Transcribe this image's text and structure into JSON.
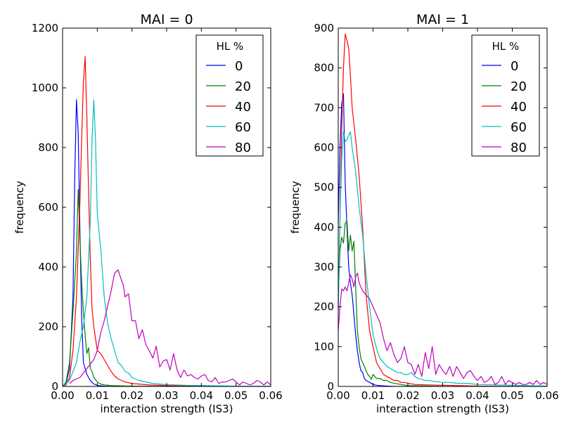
{
  "chart_data": [
    {
      "type": "line",
      "title": "MAI = 0",
      "xlabel": "interaction strength (IS3)",
      "ylabel": "frequency",
      "xlim": [
        0,
        0.06
      ],
      "ylim": [
        0,
        1200
      ],
      "xticks": [
        "0.00",
        "0.01",
        "0.02",
        "0.03",
        "0.04",
        "0.05",
        "0.06"
      ],
      "yticks": [
        "0",
        "200",
        "400",
        "600",
        "800",
        "1000",
        "1200"
      ],
      "grid": false,
      "legend": {
        "title": "HL %",
        "position": "top-right"
      },
      "series": [
        {
          "name": "0",
          "color": "#0000ff",
          "x": [
            0.0,
            0.001,
            0.002,
            0.003,
            0.0035,
            0.004,
            0.0045,
            0.005,
            0.0055,
            0.006,
            0.007,
            0.008,
            0.009,
            0.01,
            0.011,
            0.012,
            0.014,
            0.016,
            0.02,
            0.03,
            0.04,
            0.06
          ],
          "y": [
            0,
            10,
            60,
            300,
            700,
            960,
            850,
            520,
            230,
            80,
            40,
            20,
            8,
            4,
            2,
            1,
            0,
            0,
            0,
            0,
            0,
            0
          ]
        },
        {
          "name": "20",
          "color": "#008000",
          "x": [
            0.0,
            0.001,
            0.002,
            0.003,
            0.004,
            0.0045,
            0.005,
            0.0055,
            0.006,
            0.0065,
            0.007,
            0.0075,
            0.008,
            0.0085,
            0.009,
            0.01,
            0.011,
            0.012,
            0.014,
            0.016,
            0.02,
            0.03,
            0.06
          ],
          "y": [
            0,
            15,
            80,
            250,
            450,
            660,
            490,
            350,
            250,
            170,
            110,
            130,
            60,
            50,
            30,
            15,
            8,
            5,
            3,
            2,
            1,
            0,
            0
          ]
        },
        {
          "name": "40",
          "color": "#ff0000",
          "x": [
            0.0,
            0.001,
            0.002,
            0.003,
            0.004,
            0.005,
            0.0055,
            0.006,
            0.0065,
            0.007,
            0.0075,
            0.008,
            0.0085,
            0.009,
            0.01,
            0.011,
            0.012,
            0.013,
            0.014,
            0.015,
            0.016,
            0.017,
            0.018,
            0.02,
            0.022,
            0.025,
            0.03,
            0.035,
            0.04,
            0.05,
            0.06
          ],
          "y": [
            0,
            5,
            30,
            120,
            300,
            620,
            830,
            1020,
            1105,
            900,
            650,
            420,
            260,
            200,
            120,
            110,
            90,
            70,
            50,
            35,
            25,
            20,
            15,
            10,
            8,
            5,
            3,
            2,
            1,
            0,
            0
          ]
        },
        {
          "name": "60",
          "color": "#00bfbf",
          "x": [
            0.0,
            0.002,
            0.004,
            0.005,
            0.006,
            0.007,
            0.008,
            0.0085,
            0.009,
            0.0095,
            0.01,
            0.011,
            0.012,
            0.013,
            0.014,
            0.015,
            0.016,
            0.017,
            0.018,
            0.019,
            0.02,
            0.021,
            0.022,
            0.024,
            0.026,
            0.028,
            0.03,
            0.035,
            0.04,
            0.05,
            0.06
          ],
          "y": [
            0,
            20,
            80,
            150,
            200,
            300,
            560,
            830,
            960,
            820,
            580,
            460,
            300,
            210,
            160,
            120,
            80,
            70,
            50,
            45,
            30,
            25,
            20,
            15,
            10,
            8,
            6,
            4,
            3,
            1,
            0
          ]
        },
        {
          "name": "80",
          "color": "#bf00bf",
          "x": [
            0.002,
            0.003,
            0.004,
            0.005,
            0.006,
            0.007,
            0.008,
            0.009,
            0.01,
            0.011,
            0.012,
            0.013,
            0.014,
            0.015,
            0.016,
            0.017,
            0.0175,
            0.018,
            0.019,
            0.02,
            0.021,
            0.022,
            0.023,
            0.024,
            0.025,
            0.026,
            0.027,
            0.028,
            0.029,
            0.03,
            0.031,
            0.032,
            0.033,
            0.034,
            0.035,
            0.036,
            0.037,
            0.038,
            0.039,
            0.04,
            0.041,
            0.042,
            0.043,
            0.044,
            0.045,
            0.046,
            0.047,
            0.048,
            0.049,
            0.05,
            0.051,
            0.052,
            0.053,
            0.054,
            0.055,
            0.056,
            0.057,
            0.058,
            0.059,
            0.06
          ],
          "y": [
            10,
            20,
            25,
            30,
            45,
            60,
            75,
            90,
            120,
            180,
            220,
            270,
            320,
            380,
            390,
            355,
            340,
            300,
            310,
            220,
            220,
            160,
            190,
            140,
            120,
            95,
            135,
            65,
            85,
            90,
            55,
            110,
            55,
            30,
            55,
            35,
            40,
            30,
            25,
            35,
            40,
            20,
            15,
            30,
            10,
            15,
            15,
            20,
            25,
            15,
            5,
            15,
            10,
            5,
            10,
            20,
            15,
            5,
            15,
            5
          ]
        }
      ]
    },
    {
      "type": "line",
      "title": "MAI = 1",
      "xlabel": "interaction strength (IS3)",
      "ylabel": "frequency",
      "xlim": [
        0,
        0.06
      ],
      "ylim": [
        0,
        900
      ],
      "xticks": [
        "0.00",
        "0.01",
        "0.02",
        "0.03",
        "0.04",
        "0.05",
        "0.06"
      ],
      "yticks": [
        "0",
        "100",
        "200",
        "300",
        "400",
        "500",
        "600",
        "700",
        "800",
        "900"
      ],
      "grid": false,
      "legend": {
        "title": "HL %",
        "position": "top-right"
      },
      "series": [
        {
          "name": "0",
          "color": "#0000ff",
          "x": [
            0.0,
            0.0005,
            0.001,
            0.0015,
            0.002,
            0.0025,
            0.003,
            0.0035,
            0.004,
            0.0045,
            0.005,
            0.0055,
            0.006,
            0.0065,
            0.007,
            0.0075,
            0.008,
            0.009,
            0.01,
            0.011,
            0.012,
            0.014,
            0.016,
            0.02,
            0.03,
            0.06
          ],
          "y": [
            410,
            600,
            710,
            735,
            510,
            400,
            300,
            260,
            230,
            180,
            130,
            90,
            60,
            40,
            35,
            20,
            15,
            10,
            5,
            3,
            2,
            1,
            0,
            0,
            0,
            0
          ]
        },
        {
          "name": "20",
          "color": "#008000",
          "x": [
            0.0,
            0.0005,
            0.001,
            0.0015,
            0.002,
            0.0025,
            0.003,
            0.0035,
            0.004,
            0.0045,
            0.005,
            0.0055,
            0.006,
            0.0065,
            0.007,
            0.0075,
            0.008,
            0.0085,
            0.009,
            0.0095,
            0.01,
            0.011,
            0.012,
            0.013,
            0.014,
            0.015,
            0.016,
            0.018,
            0.02,
            0.03,
            0.06
          ],
          "y": [
            230,
            340,
            375,
            360,
            410,
            415,
            340,
            380,
            340,
            365,
            250,
            140,
            100,
            70,
            60,
            50,
            40,
            30,
            25,
            18,
            30,
            20,
            20,
            15,
            15,
            10,
            8,
            5,
            2,
            0,
            0
          ]
        },
        {
          "name": "40",
          "color": "#ff0000",
          "x": [
            0.0,
            0.0005,
            0.001,
            0.0015,
            0.002,
            0.0025,
            0.003,
            0.0035,
            0.004,
            0.005,
            0.006,
            0.007,
            0.008,
            0.009,
            0.01,
            0.011,
            0.012,
            0.013,
            0.014,
            0.015,
            0.016,
            0.017,
            0.018,
            0.019,
            0.02,
            0.022,
            0.025,
            0.03,
            0.035,
            0.04,
            0.05,
            0.06
          ],
          "y": [
            200,
            420,
            650,
            800,
            885,
            870,
            850,
            780,
            700,
            620,
            530,
            400,
            230,
            140,
            100,
            60,
            45,
            30,
            25,
            20,
            15,
            15,
            10,
            10,
            8,
            5,
            4,
            3,
            2,
            1,
            0,
            0
          ]
        },
        {
          "name": "60",
          "color": "#00bfbf",
          "x": [
            0.0,
            0.0005,
            0.001,
            0.0015,
            0.002,
            0.0025,
            0.003,
            0.0035,
            0.004,
            0.0045,
            0.005,
            0.006,
            0.007,
            0.008,
            0.009,
            0.01,
            0.011,
            0.012,
            0.013,
            0.014,
            0.015,
            0.016,
            0.017,
            0.018,
            0.019,
            0.02,
            0.021,
            0.022,
            0.023,
            0.024,
            0.025,
            0.026,
            0.028,
            0.03,
            0.032,
            0.034,
            0.036,
            0.038,
            0.04,
            0.045,
            0.05,
            0.055,
            0.06
          ],
          "y": [
            180,
            420,
            570,
            640,
            615,
            620,
            630,
            640,
            600,
            570,
            540,
            450,
            380,
            280,
            200,
            130,
            95,
            70,
            60,
            50,
            45,
            40,
            35,
            35,
            30,
            30,
            35,
            25,
            20,
            18,
            15,
            15,
            12,
            10,
            10,
            8,
            8,
            7,
            5,
            4,
            3,
            2,
            1
          ]
        },
        {
          "name": "80",
          "color": "#bf00bf",
          "x": [
            0.0,
            0.0005,
            0.001,
            0.0015,
            0.002,
            0.0025,
            0.003,
            0.0035,
            0.004,
            0.0045,
            0.005,
            0.0055,
            0.006,
            0.0065,
            0.007,
            0.008,
            0.009,
            0.01,
            0.011,
            0.012,
            0.013,
            0.014,
            0.015,
            0.016,
            0.017,
            0.018,
            0.019,
            0.02,
            0.021,
            0.022,
            0.023,
            0.024,
            0.025,
            0.026,
            0.027,
            0.028,
            0.029,
            0.03,
            0.031,
            0.032,
            0.033,
            0.034,
            0.035,
            0.036,
            0.037,
            0.038,
            0.039,
            0.04,
            0.041,
            0.042,
            0.043,
            0.044,
            0.045,
            0.046,
            0.047,
            0.048,
            0.049,
            0.05,
            0.051,
            0.052,
            0.053,
            0.054,
            0.055,
            0.056,
            0.057,
            0.058,
            0.059,
            0.06
          ],
          "y": [
            140,
            200,
            245,
            240,
            250,
            240,
            260,
            280,
            270,
            250,
            275,
            285,
            260,
            250,
            240,
            230,
            220,
            200,
            180,
            160,
            120,
            90,
            110,
            80,
            60,
            70,
            100,
            60,
            55,
            30,
            55,
            25,
            85,
            45,
            100,
            30,
            55,
            40,
            30,
            50,
            25,
            50,
            35,
            20,
            35,
            40,
            25,
            15,
            25,
            10,
            15,
            25,
            5,
            10,
            25,
            5,
            15,
            10,
            5,
            10,
            5,
            5,
            10,
            5,
            15,
            5,
            10,
            5
          ]
        }
      ]
    }
  ]
}
